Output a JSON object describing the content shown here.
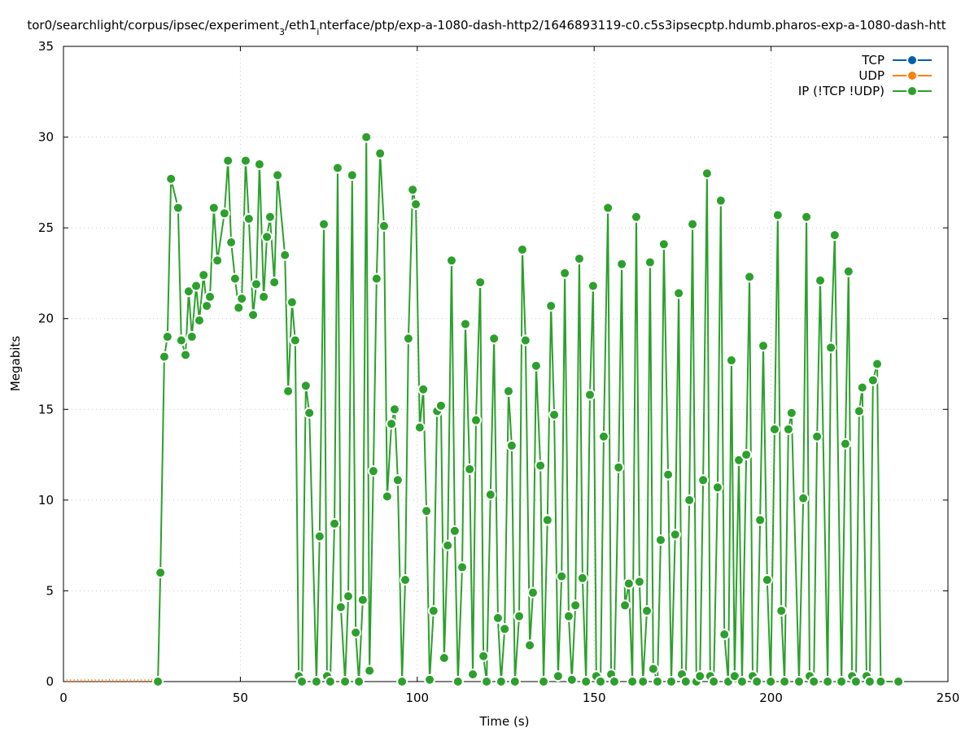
{
  "chart_data": {
    "type": "line",
    "title": "tor0/searchlight/corpus/ipsec/experiment_3/eth1_interface/ptp/exp-a-1080-dash-http2/1646893119-c0.c5s3ipsecptp.hdumb.pharos-exp-a-1080-dash-htt",
    "xlabel": "Time (s)",
    "ylabel": "Megabits",
    "xlim": [
      0,
      250
    ],
    "ylim": [
      0,
      35
    ],
    "xticks": [
      0,
      50,
      100,
      150,
      200,
      250
    ],
    "yticks": [
      0,
      5,
      10,
      15,
      20,
      25,
      30,
      35
    ],
    "grid": true,
    "legend_position": "top-right",
    "series": [
      {
        "name": "TCP",
        "color": "#0060ad",
        "x": [],
        "y": []
      },
      {
        "name": "UDP",
        "color": "#ff7f0e",
        "x": [
          1,
          2,
          3,
          4,
          5,
          6,
          7,
          8,
          9,
          10,
          11,
          12,
          13,
          14,
          15,
          16,
          17,
          18,
          19,
          20,
          21,
          22,
          23,
          24,
          25,
          26
        ],
        "y": [
          0,
          0,
          0,
          0,
          0,
          0,
          0,
          0,
          0,
          0,
          0,
          0,
          0,
          0,
          0,
          0,
          0,
          0,
          0,
          0,
          0,
          0,
          0,
          0,
          0,
          0
        ]
      },
      {
        "name": "IP (!TCP  !UDP)",
        "color": "#2ca02c",
        "x": [
          26.7,
          27.4,
          28.5,
          29.4,
          30.4,
          32.4,
          33.3,
          34.5,
          35.4,
          36.3,
          37.5,
          38.4,
          39.6,
          40.5,
          41.4,
          42.5,
          43.5,
          45.5,
          46.5,
          47.4,
          48.5,
          49.5,
          50.4,
          51.5,
          52.4,
          53.6,
          54.5,
          55.4,
          56.6,
          57.5,
          58.4,
          59.6,
          60.5,
          62.6,
          63.5,
          64.6,
          65.5,
          66.5,
          67.4,
          68.5,
          69.5,
          71.5,
          72.4,
          73.6,
          74.5,
          75.4,
          76.6,
          77.5,
          78.4,
          79.6,
          80.5,
          81.6,
          82.6,
          83.5,
          84.6,
          85.6,
          86.5,
          87.6,
          88.5,
          89.5,
          90.6,
          91.5,
          92.7,
          93.6,
          94.5,
          95.7,
          96.6,
          97.5,
          98.7,
          99.6,
          100.7,
          101.7,
          102.6,
          103.5,
          104.6,
          105.6,
          106.7,
          107.6,
          108.6,
          109.7,
          110.6,
          111.5,
          112.7,
          113.6,
          114.8,
          115.7,
          116.6,
          117.8,
          118.7,
          119.6,
          120.7,
          121.7,
          122.8,
          123.7,
          124.7,
          125.8,
          126.7,
          127.6,
          128.8,
          129.7,
          130.6,
          131.8,
          132.7,
          133.6,
          134.8,
          135.7,
          136.8,
          137.8,
          138.7,
          139.8,
          140.8,
          141.7,
          142.8,
          143.7,
          144.7,
          145.8,
          146.7,
          147.7,
          148.8,
          149.7,
          150.6,
          151.8,
          152.7,
          153.9,
          154.8,
          155.7,
          156.9,
          157.8,
          158.7,
          159.8,
          160.8,
          161.9,
          162.8,
          163.8,
          164.9,
          165.8,
          166.7,
          167.9,
          168.8,
          169.7,
          170.9,
          171.8,
          172.9,
          173.9,
          174.8,
          175.9,
          176.9,
          177.8,
          178.9,
          179.9,
          180.8,
          181.9,
          182.8,
          183.8,
          184.9,
          185.8,
          186.8,
          187.9,
          188.8,
          189.7,
          190.9,
          191.8,
          193.0,
          193.9,
          194.8,
          196.0,
          196.9,
          197.8,
          198.9,
          199.9,
          201.0,
          201.9,
          202.9,
          203.8,
          204.9,
          205.8,
          207.9,
          209.1,
          210.0,
          210.9,
          212.1,
          213.0,
          213.9,
          216.0,
          216.9,
          218.0,
          219.9,
          221.0,
          221.9,
          222.9,
          224.0,
          224.9,
          225.8,
          227.0,
          227.9,
          228.8,
          230.0,
          231.0,
          236.0
        ],
        "y": [
          0,
          6.0,
          17.9,
          19.0,
          27.7,
          26.1,
          18.8,
          18.0,
          21.5,
          19.0,
          21.8,
          19.9,
          22.4,
          20.7,
          21.2,
          26.1,
          23.2,
          25.8,
          28.7,
          24.2,
          22.2,
          20.6,
          21.1,
          28.7,
          25.5,
          20.2,
          21.9,
          28.5,
          21.2,
          24.5,
          25.6,
          22.0,
          27.9,
          23.5,
          16.0,
          20.9,
          18.8,
          0.3,
          0,
          16.3,
          14.8,
          0,
          8.0,
          25.2,
          0.3,
          0,
          8.7,
          28.3,
          4.1,
          0,
          4.7,
          27.9,
          2.7,
          0,
          4.5,
          30.0,
          0.6,
          11.6,
          22.2,
          29.1,
          25.1,
          10.2,
          14.2,
          15.0,
          11.1,
          0,
          5.6,
          18.9,
          27.1,
          26.3,
          14.0,
          16.1,
          9.4,
          0.1,
          3.9,
          14.9,
          15.2,
          1.3,
          7.5,
          23.2,
          8.3,
          0,
          6.3,
          19.7,
          11.7,
          0.4,
          14.4,
          22.0,
          1.4,
          0,
          10.3,
          18.9,
          3.5,
          0,
          2.9,
          16.0,
          13.0,
          0,
          3.6,
          23.8,
          18.8,
          2.0,
          4.9,
          17.4,
          11.9,
          0,
          8.9,
          20.7,
          14.7,
          0.3,
          5.8,
          22.5,
          3.6,
          0.1,
          4.2,
          23.3,
          5.7,
          0,
          15.8,
          21.8,
          0.3,
          0,
          13.5,
          26.1,
          0.4,
          0,
          11.8,
          23.0,
          4.2,
          5.4,
          0,
          25.6,
          5.5,
          0,
          3.9,
          23.1,
          0.7,
          0,
          7.8,
          24.1,
          11.4,
          0,
          8.1,
          21.4,
          0.4,
          0,
          10.0,
          25.2,
          0,
          0.3,
          11.1,
          28.0,
          0.3,
          0,
          10.7,
          26.5,
          2.6,
          0,
          17.7,
          0.3,
          12.2,
          0,
          12.5,
          22.3,
          0.3,
          0,
          8.9,
          18.5,
          5.6,
          0,
          13.9,
          25.7,
          3.9,
          0,
          13.9,
          14.8,
          0,
          10.1,
          25.6,
          0.3,
          0,
          13.5,
          22.1,
          0,
          18.4,
          24.6,
          0,
          13.1,
          22.6,
          0.3,
          0,
          14.9,
          16.2,
          0.3,
          0,
          16.6,
          17.5,
          0,
          0
        ]
      }
    ]
  }
}
